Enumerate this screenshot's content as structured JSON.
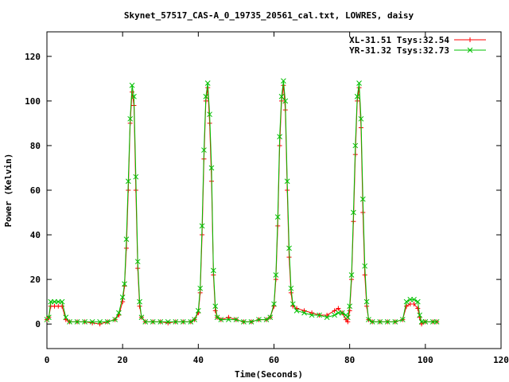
{
  "chart_data": {
    "type": "line",
    "title": "Skynet_57517_CAS-A_0_19735_20561_cal.txt, LOWRES, daisy",
    "xlabel": "Time(Seconds)",
    "ylabel": "Power (Kelvin)",
    "xlim": [
      0,
      120
    ],
    "ylim": [
      -11,
      131
    ],
    "xticks": [
      0,
      20,
      40,
      60,
      80,
      100,
      120
    ],
    "yticks": [
      0,
      20,
      40,
      60,
      80,
      100,
      120
    ],
    "grid": false,
    "legend_position": "top-right",
    "x": [
      0,
      0.5,
      1,
      2,
      3,
      4,
      5,
      6,
      8,
      10,
      12,
      14,
      16,
      18,
      19,
      20,
      20.5,
      21,
      21.5,
      22,
      22.5,
      23,
      23.5,
      24,
      24.5,
      25,
      26,
      28,
      30,
      32,
      34,
      36,
      38,
      39,
      40,
      40.5,
      41,
      41.5,
      42,
      42.5,
      43,
      43.5,
      44,
      44.5,
      45,
      46,
      48,
      50,
      52,
      54,
      56,
      58,
      59,
      60,
      60.5,
      61,
      61.5,
      62,
      62.5,
      63,
      63.5,
      64,
      64.5,
      65,
      66,
      68,
      70,
      72,
      74,
      76,
      77,
      78,
      79,
      79.5,
      80,
      80.5,
      81,
      81.5,
      82,
      82.5,
      83,
      83.5,
      84,
      84.5,
      85,
      86,
      88,
      90,
      92,
      94,
      95,
      96,
      97,
      98,
      98.5,
      99,
      100,
      102,
      103
    ],
    "series": [
      {
        "name": "XL-31.51 Tsys:32.54",
        "color": "#ff0000",
        "marker": "plus",
        "values": [
          2,
          3,
          8,
          8,
          8,
          8,
          2,
          1,
          1,
          1,
          0.5,
          0,
          1,
          2,
          4,
          10,
          17,
          34,
          60,
          90,
          104,
          98,
          60,
          25,
          8,
          3,
          1,
          1,
          1,
          0.5,
          1,
          1,
          1,
          2,
          5,
          14,
          40,
          74,
          100,
          106,
          90,
          64,
          22,
          6,
          3,
          2,
          3,
          2,
          1,
          1,
          2,
          2,
          3,
          8,
          20,
          44,
          80,
          100,
          107,
          96,
          60,
          30,
          14,
          8,
          7,
          6,
          5,
          4,
          4,
          6,
          7,
          5,
          2,
          1,
          6,
          20,
          46,
          76,
          100,
          106,
          88,
          50,
          22,
          8,
          2,
          1,
          1,
          1,
          1,
          2,
          8,
          9,
          9,
          7,
          3,
          0,
          1,
          1,
          1
        ]
      },
      {
        "name": "YR-31.32 Tsys:32.73",
        "color": "#00c000",
        "marker": "cross",
        "values": [
          2,
          3,
          10,
          10,
          10,
          10,
          3,
          1,
          1,
          1,
          1,
          1,
          1,
          2,
          5,
          12,
          18,
          38,
          64,
          92,
          107,
          102,
          66,
          28,
          10,
          3,
          1,
          1,
          1,
          1,
          1,
          1,
          1,
          2,
          6,
          16,
          44,
          78,
          102,
          108,
          94,
          70,
          24,
          8,
          3,
          2,
          2,
          2,
          1,
          1,
          2,
          2,
          3,
          9,
          22,
          48,
          84,
          102,
          109,
          100,
          64,
          34,
          16,
          9,
          6,
          5,
          4,
          4,
          3,
          4,
          5,
          5,
          4,
          3,
          8,
          22,
          50,
          80,
          102,
          108,
          92,
          56,
          26,
          10,
          2,
          1,
          1,
          1,
          1,
          2,
          10,
          11,
          11,
          10,
          4,
          1,
          1,
          1,
          1
        ]
      }
    ]
  }
}
